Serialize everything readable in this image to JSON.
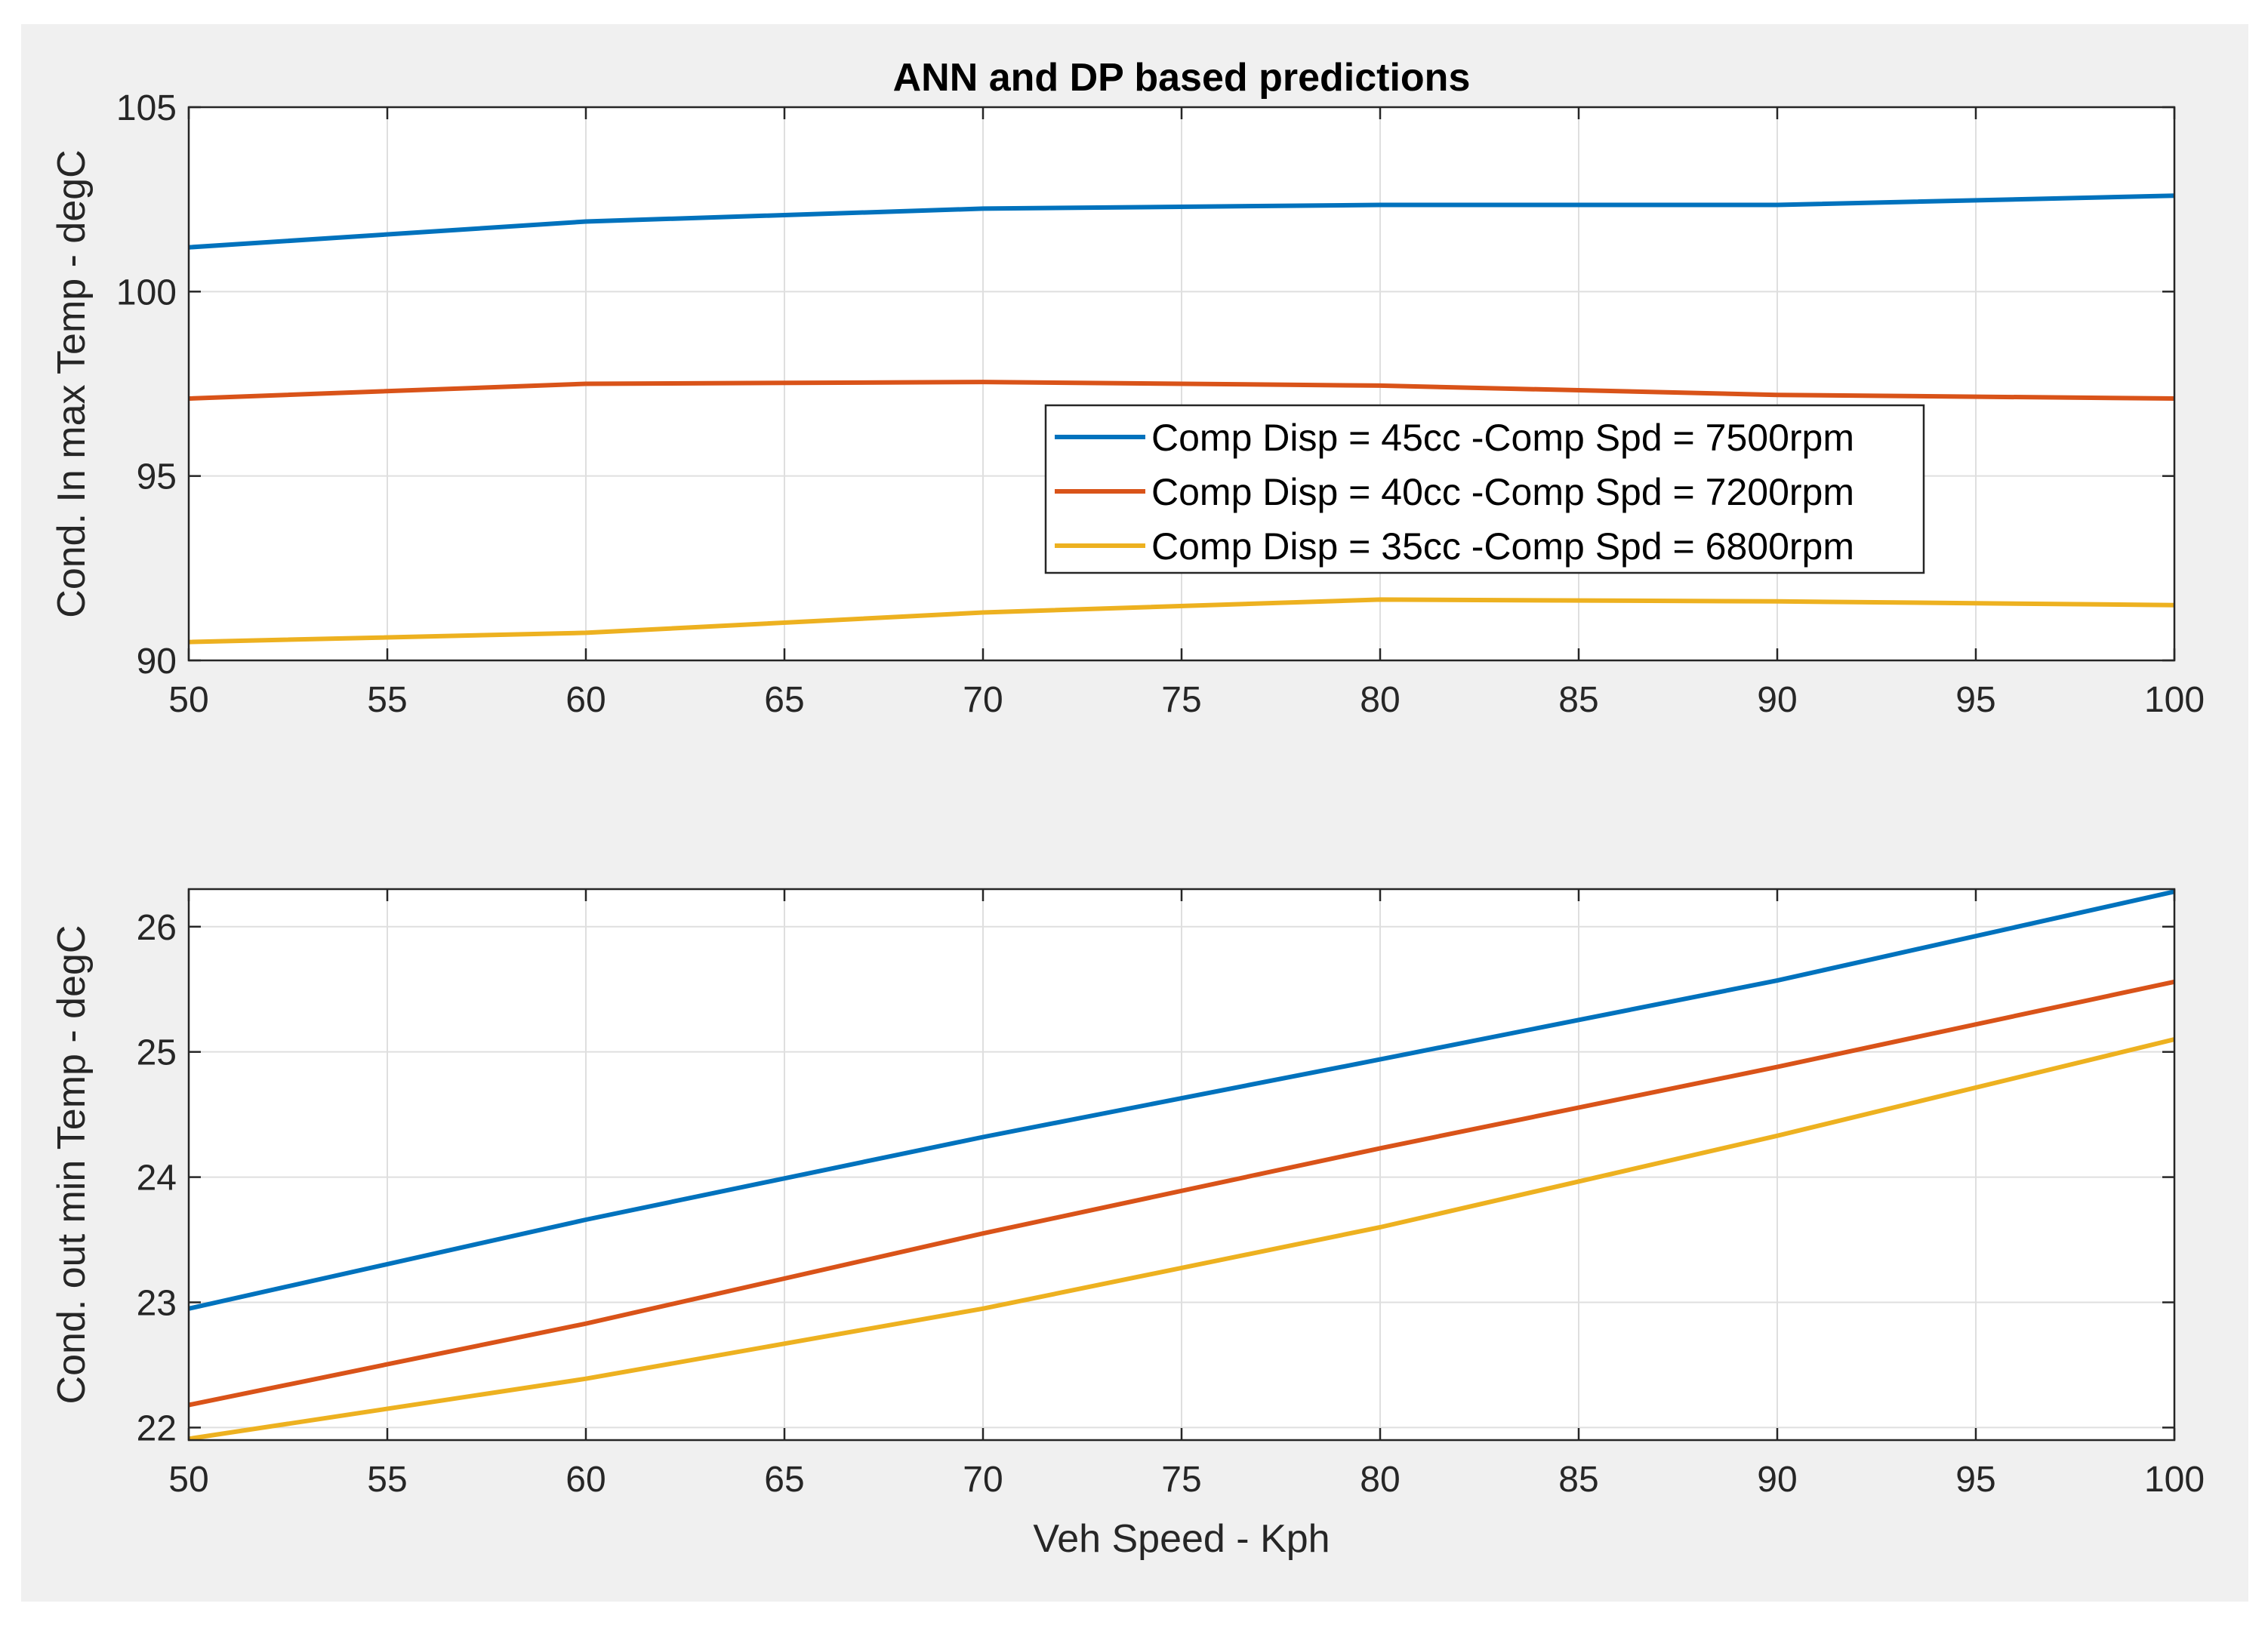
{
  "colors": {
    "figure_bg": "#f0f0f0",
    "axes_bg": "#ffffff",
    "grid": "#dfdfdf",
    "axis": "#262626"
  },
  "chart_data": [
    {
      "type": "line",
      "title": "ANN and DP based predictions",
      "xlabel": "",
      "ylabel": "Cond. In max Temp - degC",
      "xlim": [
        50,
        100
      ],
      "ylim": [
        90,
        105
      ],
      "xticks": [
        50,
        55,
        60,
        65,
        70,
        75,
        80,
        85,
        90,
        95,
        100
      ],
      "yticks": [
        90,
        95,
        100,
        105
      ],
      "grid": true,
      "legend_position": "center-right",
      "x": [
        50,
        60,
        70,
        80,
        90,
        100
      ],
      "series": [
        {
          "name": "Comp Disp = 45cc -Comp Spd = 7500rpm",
          "color": "#0072bd",
          "values": [
            101.2,
            101.9,
            102.25,
            102.35,
            102.35,
            102.6
          ]
        },
        {
          "name": "Comp Disp = 40cc -Comp Spd = 7200rpm",
          "color": "#d95319",
          "values": [
            97.1,
            97.5,
            97.55,
            97.45,
            97.2,
            97.1
          ]
        },
        {
          "name": "Comp Disp = 35cc -Comp Spd = 6800rpm",
          "color": "#edb120",
          "values": [
            90.5,
            90.75,
            91.3,
            91.65,
            91.6,
            91.5
          ]
        }
      ]
    },
    {
      "type": "line",
      "title": "",
      "xlabel": "Veh Speed - Kph",
      "ylabel": "Cond. out min Temp - degC",
      "xlim": [
        50,
        100
      ],
      "ylim": [
        21.9,
        26.3
      ],
      "xticks": [
        50,
        55,
        60,
        65,
        70,
        75,
        80,
        85,
        90,
        95,
        100
      ],
      "yticks": [
        22,
        23,
        24,
        25,
        26
      ],
      "grid": true,
      "x": [
        50,
        60,
        70,
        80,
        90,
        100
      ],
      "series": [
        {
          "name": "Comp Disp = 45cc -Comp Spd = 7500rpm",
          "color": "#0072bd",
          "values": [
            22.95,
            23.66,
            24.32,
            24.94,
            25.57,
            26.28
          ]
        },
        {
          "name": "Comp Disp = 40cc -Comp Spd = 7200rpm",
          "color": "#d95319",
          "values": [
            22.18,
            22.83,
            23.55,
            24.23,
            24.88,
            25.56
          ]
        },
        {
          "name": "Comp Disp = 35cc -Comp Spd = 6800rpm",
          "color": "#edb120",
          "values": [
            21.91,
            22.39,
            22.95,
            23.6,
            24.33,
            25.1
          ]
        }
      ]
    }
  ]
}
